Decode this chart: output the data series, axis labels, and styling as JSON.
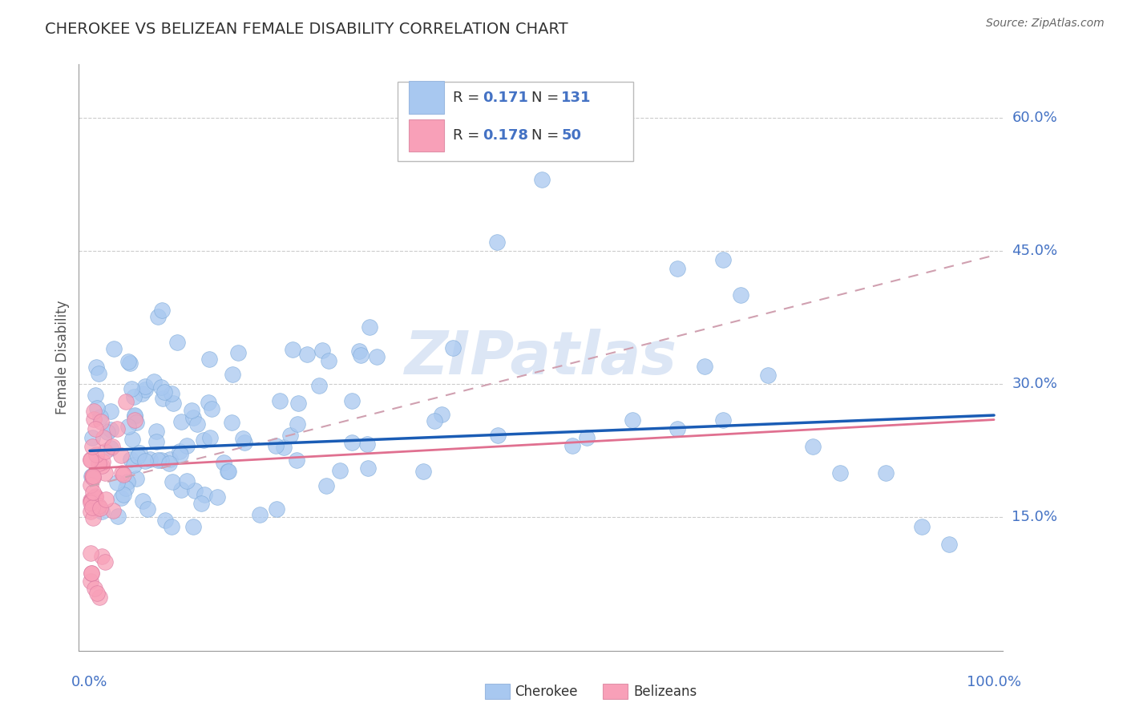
{
  "title": "CHEROKEE VS BELIZEAN FEMALE DISABILITY CORRELATION CHART",
  "source": "Source: ZipAtlas.com",
  "ylabel": "Female Disability",
  "cherokee_R": "0.171",
  "cherokee_N": "131",
  "belizean_R": "0.178",
  "belizean_N": "50",
  "cherokee_color": "#a8c8f0",
  "belizean_color": "#f8a0b8",
  "cherokee_line_color": "#1a5cb5",
  "belizean_line_color": "#e07090",
  "legend_R_color": "#4472c4",
  "legend_N_color": "#4472c4",
  "belizean_legend_R_color": "#4472c4",
  "belizean_legend_N_color": "#4472c4",
  "grid_color": "#cccccc",
  "title_color": "#333333",
  "watermark_color": "#dce6f5",
  "axis_label_color": "#4472c4",
  "y_ticks": [
    0.15,
    0.3,
    0.45,
    0.6
  ],
  "y_tick_labels": [
    "15.0%",
    "30.0%",
    "45.0%",
    "60.0%"
  ],
  "cherokee_line": [
    0.0,
    0.225,
    1.0,
    0.265
  ],
  "belizean_line": [
    0.0,
    0.205,
    1.0,
    0.26
  ],
  "belizean_dashed_line": [
    0.0,
    0.185,
    1.0,
    0.445
  ]
}
